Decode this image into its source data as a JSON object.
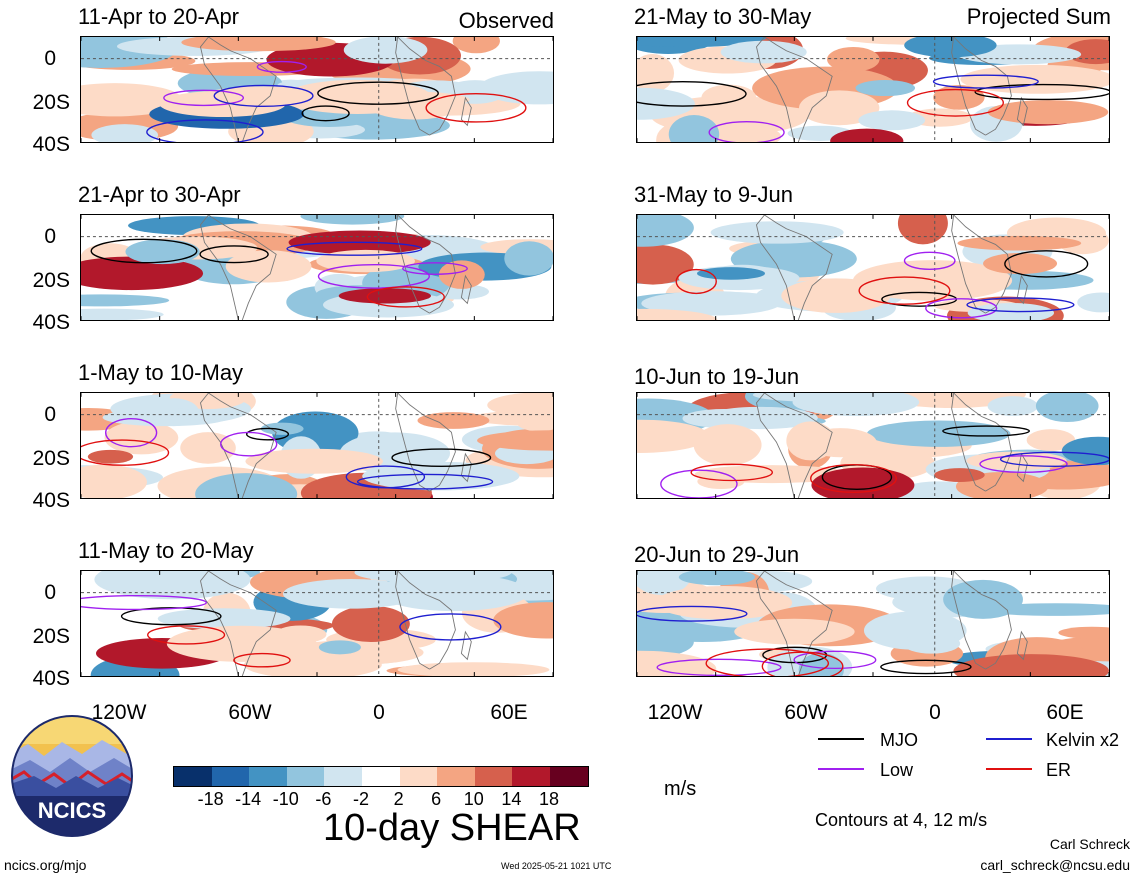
{
  "labels": {
    "observed": "Observed",
    "projected": "Projected Sum",
    "units": "m/s",
    "variable": "10-day SHEAR",
    "contours_note": "Contours at 4, 12 m/s",
    "author": "Carl Schreck",
    "email": "carl_schreck@ncsu.edu",
    "site": "ncics.org/mjo",
    "timestamp": "Wed 2025-05-21 1021 UTC",
    "logo_text": "NCICS"
  },
  "panels_left": [
    {
      "title": "11-Apr to 20-Apr"
    },
    {
      "title": "21-Apr to 30-Apr"
    },
    {
      "title": "1-May to 10-May"
    },
    {
      "title": "11-May to 20-May"
    }
  ],
  "panels_right": [
    {
      "title": "21-May to 30-May"
    },
    {
      "title": "31-May to 9-Jun"
    },
    {
      "title": "10-Jun to 19-Jun"
    },
    {
      "title": "20-Jun to 29-Jun"
    }
  ],
  "y_ticks": [
    "0",
    "20S",
    "40S"
  ],
  "x_ticks": [
    "120W",
    "60W",
    "0",
    "60E"
  ],
  "legend": [
    {
      "label": "MJO",
      "color": "#000000"
    },
    {
      "label": "Kelvin x2",
      "color": "#1f1fd0"
    },
    {
      "label": "Low",
      "color": "#a020f0"
    },
    {
      "label": "ER",
      "color": "#e01010"
    }
  ],
  "colorbar": {
    "colors": [
      "#08306b",
      "#2166ac",
      "#4393c3",
      "#92c5de",
      "#d1e5f0",
      "#ffffff",
      "#fddbc7",
      "#f4a582",
      "#d6604d",
      "#b2182b",
      "#67001f"
    ],
    "ticks": [
      "-18",
      "-14",
      "-10",
      "-6",
      "-2",
      "2",
      "6",
      "10",
      "14",
      "18"
    ]
  }
}
